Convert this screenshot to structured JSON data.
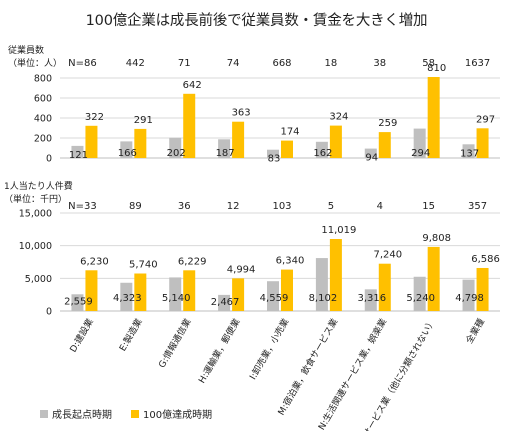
{
  "title": "100億企業は成長前後で従業員数・賃金を大きく増加",
  "colors": {
    "start": "#bfbfbf",
    "end": "#ffc000",
    "grid": "#d9d9d9",
    "axis": "#bfbfbf"
  },
  "categories": [
    "D:建設業",
    "E:製造業",
    "G:情報通信業",
    "H:運輸業，郵便業",
    "I:卸売業，小売業",
    "M:宿泊業，飲食サービス業",
    "N:生活関連サービス業，娯楽業",
    "R:サービス業（他に分類されない）",
    "全業種"
  ],
  "legend": [
    "成長起点時期",
    "100億達成時期"
  ],
  "chart_data": [
    {
      "type": "bar",
      "ylabel": [
        "従業員数",
        "（単位：人）"
      ],
      "ylim": [
        0,
        800
      ],
      "yticks": [
        "0",
        "200",
        "400",
        "600",
        "800"
      ],
      "counts": [
        "N=86",
        "442",
        "71",
        "74",
        "668",
        "18",
        "38",
        "58",
        "1637"
      ],
      "series": [
        {
          "name": "成長起点時期",
          "values": [
            121,
            166,
            202,
            187,
            83,
            162,
            94,
            294,
            137
          ],
          "labels": [
            "121",
            "166",
            "202",
            "187",
            "83",
            "162",
            "94",
            "294",
            "137"
          ]
        },
        {
          "name": "100億達成時期",
          "values": [
            322,
            291,
            642,
            363,
            174,
            324,
            259,
            810,
            297
          ],
          "labels": [
            "322",
            "291",
            "642",
            "363",
            "174",
            "324",
            "259",
            "810",
            "297"
          ]
        }
      ]
    },
    {
      "type": "bar",
      "ylabel": [
        "1人当たり人件費",
        "（単位：千円）"
      ],
      "ylim": [
        0,
        15000
      ],
      "yticks": [
        "0",
        "5,000",
        "10,000",
        "15,000"
      ],
      "counts": [
        "N=33",
        "89",
        "36",
        "12",
        "103",
        "5",
        "4",
        "15",
        "357"
      ],
      "series": [
        {
          "name": "成長起点時期",
          "values": [
            2559,
            4323,
            5140,
            2467,
            4559,
            8102,
            3316,
            5240,
            4798
          ],
          "labels": [
            "2,559",
            "4,323",
            "5,140",
            "2,467",
            "4,559",
            "8,102",
            "3,316",
            "5,240",
            "4,798"
          ]
        },
        {
          "name": "100億達成時期",
          "values": [
            6230,
            5740,
            6229,
            4994,
            6340,
            11019,
            7240,
            9808,
            6586
          ],
          "labels": [
            "6,230",
            "5,740",
            "6,229",
            "4,994",
            "6,340",
            "11,019",
            "7,240",
            "9,808",
            "6,586"
          ]
        }
      ]
    }
  ]
}
